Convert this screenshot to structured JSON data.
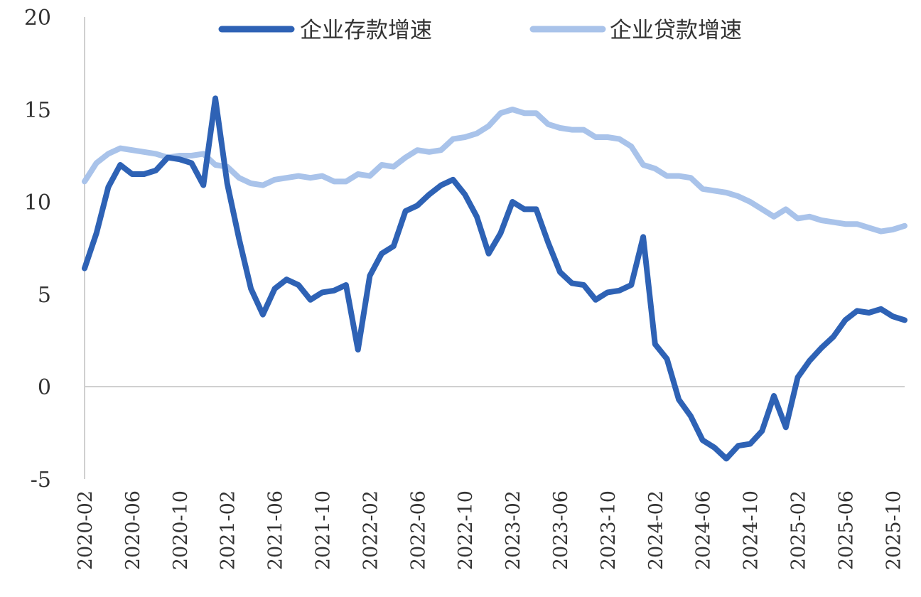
{
  "chart_data": {
    "type": "line",
    "title": "",
    "xlabel": "",
    "ylabel": "",
    "ylim": [
      -5,
      20
    ],
    "yticks": [
      -5,
      0,
      5,
      10,
      15,
      20
    ],
    "grid": false,
    "legend_position": "top",
    "x_tick_labels": [
      "2020-02",
      "2020-06",
      "2020-10",
      "2021-02",
      "2021-06",
      "2021-10",
      "2022-02",
      "2022-06",
      "2022-10",
      "2023-02",
      "2023-06",
      "2023-10",
      "2024-02",
      "2024-06",
      "2024-10",
      "2025-02",
      "2025-06",
      "2025-10"
    ],
    "x_start": "2020-02",
    "x_end": "2025-11",
    "series": [
      {
        "name": "企业存款增速",
        "color": "#2e62b5",
        "values": [
          6.4,
          8.3,
          10.8,
          12.0,
          11.5,
          11.5,
          11.7,
          12.4,
          12.3,
          12.1,
          10.9,
          15.6,
          11.0,
          8.0,
          5.3,
          3.9,
          5.3,
          5.8,
          5.5,
          4.7,
          5.1,
          5.2,
          5.5,
          2.0,
          6.0,
          7.2,
          7.6,
          9.5,
          9.8,
          10.4,
          10.9,
          11.2,
          10.4,
          9.2,
          7.2,
          8.3,
          10.0,
          9.6,
          9.6,
          7.8,
          6.2,
          5.6,
          5.5,
          4.7,
          5.1,
          5.2,
          5.5,
          8.1,
          2.3,
          1.5,
          -0.7,
          -1.6,
          -2.9,
          -3.3,
          -3.9,
          -3.2,
          -3.1,
          -2.4,
          -0.5,
          -2.2,
          0.5,
          1.4,
          2.1,
          2.7,
          3.6,
          4.1,
          4.0,
          4.2,
          3.8,
          3.6
        ]
      },
      {
        "name": "企业贷款增速",
        "color": "#a9c3ea",
        "values": [
          11.1,
          12.1,
          12.6,
          12.9,
          12.8,
          12.7,
          12.6,
          12.4,
          12.5,
          12.5,
          12.6,
          12.0,
          11.9,
          11.3,
          11.0,
          10.9,
          11.2,
          11.3,
          11.4,
          11.3,
          11.4,
          11.1,
          11.1,
          11.5,
          11.4,
          12.0,
          11.9,
          12.4,
          12.8,
          12.7,
          12.8,
          13.4,
          13.5,
          13.7,
          14.1,
          14.8,
          15.0,
          14.8,
          14.8,
          14.2,
          14.0,
          13.9,
          13.9,
          13.5,
          13.5,
          13.4,
          13.0,
          12.0,
          11.8,
          11.4,
          11.4,
          11.3,
          10.7,
          10.6,
          10.5,
          10.3,
          10.0,
          9.6,
          9.2,
          9.6,
          9.1,
          9.2,
          9.0,
          8.9,
          8.8,
          8.8,
          8.6,
          8.4,
          8.5,
          8.7
        ]
      }
    ]
  }
}
